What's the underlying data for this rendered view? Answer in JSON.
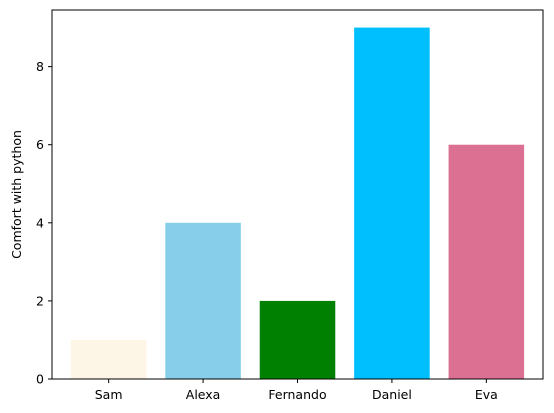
{
  "chart_data": {
    "type": "bar",
    "title": "",
    "xlabel": "",
    "ylabel": "Comfort with python",
    "categories": [
      "Sam",
      "Alexa",
      "Fernando",
      "Daniel",
      "Eva"
    ],
    "values": [
      1,
      4,
      2,
      9,
      6
    ],
    "colors": [
      "#fdf5e6",
      "#87ceeb",
      "#008000",
      "#00bfff",
      "#db7093"
    ],
    "ylim": [
      0,
      9.45
    ],
    "yticks": [
      "0",
      "2",
      "4",
      "6",
      "8"
    ],
    "grid": false,
    "legend": "none"
  }
}
